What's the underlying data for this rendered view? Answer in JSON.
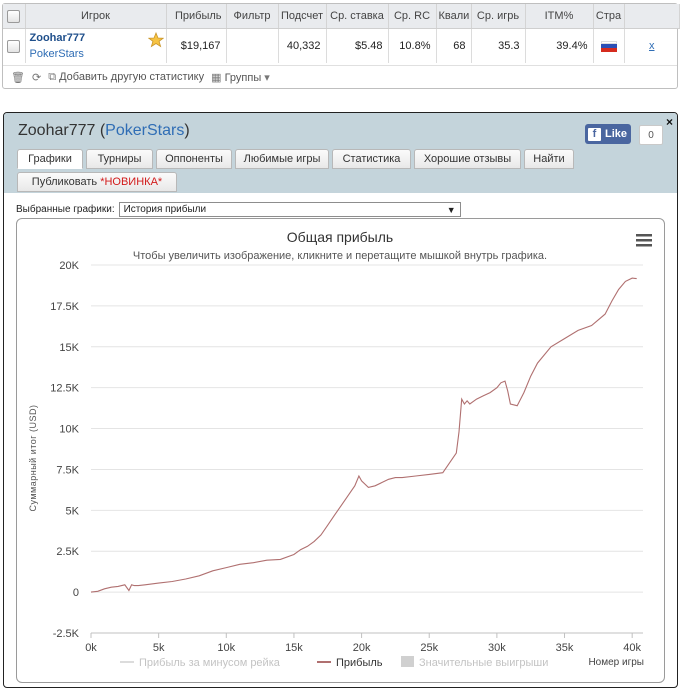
{
  "stats_table": {
    "headers": [
      "Игрок",
      "Прибыль",
      "Фильтр",
      "Подсчет",
      "Ср. ставка",
      "Ср. RC",
      "Квали",
      "Ср. игрь",
      "ITM%",
      "Стра"
    ],
    "row": {
      "player": "Zoohar777",
      "site": "PokerStars",
      "profit": "$19,167",
      "filter": "",
      "count": "40,332",
      "avg_stake": "$5.48",
      "avg_roi": "10.8%",
      "quali": "68",
      "avg_players": "35.3",
      "itm": "39.4%",
      "country_flag": "russia-flag",
      "remove": "x"
    },
    "footer": {
      "add_stats": "Добавить другую статистику",
      "groups": "Группы"
    }
  },
  "panel": {
    "player": "Zoohar777",
    "site": "PokerStars",
    "open_paren": " (",
    "close_paren": ")",
    "close": "×",
    "fb_like": "Like",
    "fb_count": "0",
    "tabs": [
      "Графики",
      "Турниры",
      "Оппоненты",
      "Любимые игры",
      "Статистика",
      "Хорошие отзывы",
      "Найти"
    ],
    "publish_tab": "Публиковать",
    "publish_new": "*НОВИНКА*",
    "graph_select_label": "Выбранные графики:",
    "graph_select_value": "История прибыли"
  },
  "chart_data": {
    "type": "line",
    "title": "Общая прибыль",
    "subtitle": "Чтобы увеличить изображение, кликните и перетащите мышкой внутрь графика.",
    "ylabel": "Суммарный итог (USD)",
    "xlabel": "Номер игры",
    "ylim": [
      -2500,
      20000
    ],
    "xlim": [
      0,
      40332
    ],
    "y_ticks": [
      "-2.5K",
      "0",
      "2.5K",
      "5K",
      "7.5K",
      "10K",
      "12.5K",
      "15K",
      "17.5K",
      "20K"
    ],
    "x_ticks": [
      "0k",
      "5k",
      "10k",
      "15k",
      "20k",
      "25k",
      "30k",
      "35k",
      "40k"
    ],
    "grid": "horizontal",
    "legend_position": "bottom",
    "legend": [
      "Прибыль за минусом рейка",
      "Прибыль",
      "Значительные выигрыши"
    ],
    "series": [
      {
        "name": "Прибыль",
        "color": "#b07070",
        "x": [
          0,
          500,
          1000,
          1500,
          2000,
          2500,
          2800,
          3000,
          3200,
          3500,
          4000,
          5000,
          6000,
          7000,
          8000,
          9000,
          10000,
          11000,
          12000,
          13000,
          14000,
          15000,
          15500,
          16000,
          16500,
          17000,
          17500,
          18000,
          18500,
          19000,
          19500,
          19800,
          20000,
          20500,
          21000,
          21500,
          22000,
          22500,
          23000,
          24000,
          25000,
          26000,
          26500,
          27000,
          27200,
          27400,
          27600,
          27800,
          28000,
          28500,
          29000,
          29500,
          30000,
          30300,
          30600,
          30800,
          31000,
          31500,
          32000,
          32500,
          33000,
          34000,
          35000,
          36000,
          37000,
          38000,
          38500,
          39000,
          39500,
          40000,
          40332
        ],
        "values": [
          0,
          50,
          200,
          300,
          350,
          450,
          100,
          450,
          400,
          400,
          450,
          550,
          650,
          800,
          1000,
          1300,
          1500,
          1700,
          1800,
          1950,
          2000,
          2300,
          2600,
          2800,
          3100,
          3500,
          4100,
          4700,
          5300,
          5900,
          6500,
          7100,
          6800,
          6400,
          6500,
          6700,
          6900,
          7000,
          7000,
          7100,
          7200,
          7300,
          7900,
          8500,
          9800,
          11800,
          11500,
          11700,
          11500,
          11800,
          12000,
          12200,
          12500,
          12800,
          12900,
          12300,
          11500,
          11400,
          12200,
          13200,
          14000,
          15000,
          15500,
          16000,
          16300,
          17000,
          17800,
          18500,
          19000,
          19200,
          19167
        ]
      }
    ]
  }
}
